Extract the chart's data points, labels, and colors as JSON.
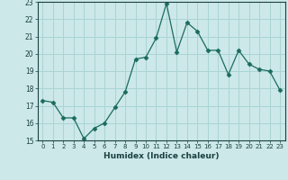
{
  "x": [
    0,
    1,
    2,
    3,
    4,
    5,
    6,
    7,
    8,
    9,
    10,
    11,
    12,
    13,
    14,
    15,
    16,
    17,
    18,
    19,
    20,
    21,
    22,
    23
  ],
  "y": [
    17.3,
    17.2,
    16.3,
    16.3,
    15.1,
    15.7,
    16.0,
    16.9,
    17.8,
    19.7,
    19.8,
    20.9,
    22.9,
    20.1,
    21.8,
    21.3,
    20.2,
    20.2,
    18.8,
    20.2,
    19.4,
    19.1,
    19.0,
    17.9
  ],
  "line_color": "#1a6b5e",
  "marker": "D",
  "marker_size": 2.5,
  "bg_color": "#cce8e8",
  "grid_color": "#aad4d4",
  "xlabel": "Humidex (Indice chaleur)",
  "ylim": [
    15,
    23
  ],
  "xlim": [
    -0.5,
    23.5
  ],
  "yticks": [
    15,
    16,
    17,
    18,
    19,
    20,
    21,
    22,
    23
  ],
  "xticks": [
    0,
    1,
    2,
    3,
    4,
    5,
    6,
    7,
    8,
    9,
    10,
    11,
    12,
    13,
    14,
    15,
    16,
    17,
    18,
    19,
    20,
    21,
    22,
    23
  ]
}
